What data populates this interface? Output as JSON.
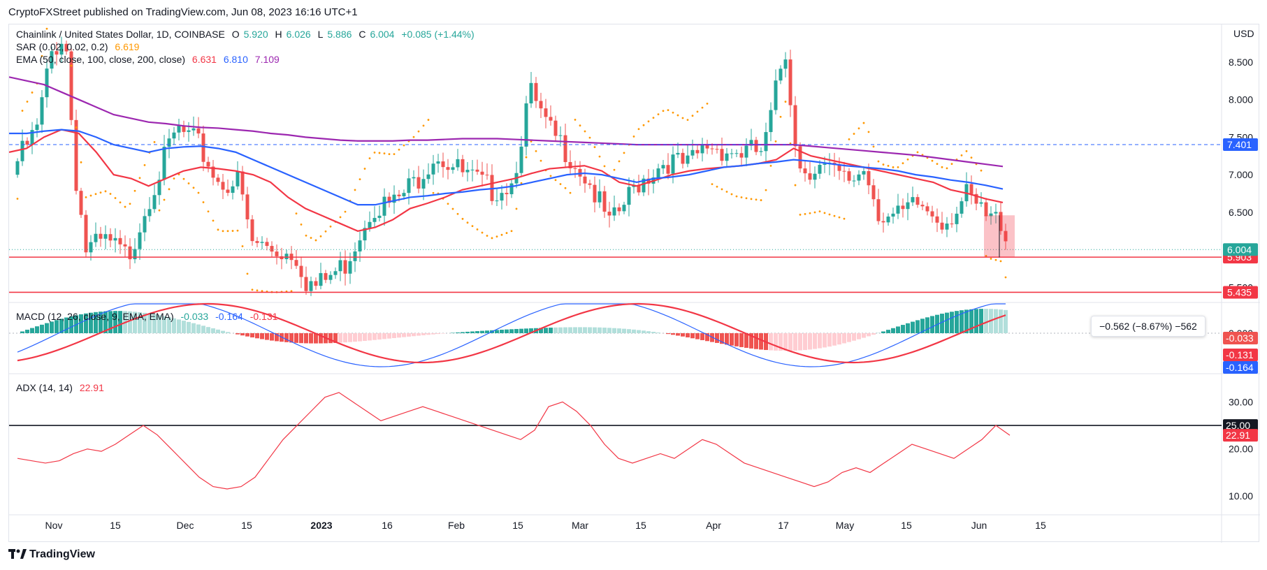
{
  "header": {
    "published": "CryptoFXStreet published on TradingView.com, Jun 08, 2023 16:16 UTC+1",
    "brand": "TradingView"
  },
  "legend": {
    "symbol": "Chainlink / United States Dollar, 1D, COINBASE",
    "ohlc": {
      "o_label": "O",
      "o": "5.920",
      "h_label": "H",
      "h": "6.026",
      "l_label": "L",
      "l": "5.886",
      "c_label": "C",
      "c": "6.004",
      "chg": "+0.085 (+1.44%)"
    },
    "sar": {
      "label": "SAR (0.02, 0.02, 0.2)",
      "value": "6.619"
    },
    "ema": {
      "label": "EMA (50, close, 100, close, 200, close)",
      "v50": "6.631",
      "v100": "6.810",
      "v200": "7.109"
    },
    "macd": {
      "label": "MACD (12, 26, close, 9, EMA, EMA)",
      "hist": "-0.033",
      "macd": "-0.164",
      "signal": "-0.131"
    },
    "adx": {
      "label": "ADX (14, 14)",
      "value": "22.91"
    }
  },
  "measure_box": {
    "text": "−0.562 (−8.67%) −562"
  },
  "colors": {
    "up": "#26a69a",
    "down": "#ef5350",
    "ema50": "#f23645",
    "ema100": "#2962ff",
    "ema200": "#9c27b0",
    "sar": "#ff9800",
    "adx": "#f23645",
    "macd_line": "#2962ff",
    "signal_line": "#f23645"
  },
  "chart_data": [
    {
      "type": "candlestick",
      "title": "Chainlink / United States Dollar, 1D, COINBASE",
      "ylabel": "USD",
      "ylim": [
        5.3,
        9.0
      ],
      "yticks": [
        "8.500",
        "8.000",
        "7.500",
        "7.000",
        "6.500",
        "6.000",
        "5.500"
      ],
      "x_tick_labels": [
        "Nov",
        "15",
        "Dec",
        "15",
        "2023",
        "16",
        "Feb",
        "15",
        "Mar",
        "15",
        "Apr",
        "17",
        "May",
        "15",
        "Jun",
        "15"
      ],
      "last_price": "6.004",
      "horizontal_lines": [
        {
          "value": 7.401,
          "label": "7.401",
          "style": "dashed",
          "color": "#2962ff"
        },
        {
          "value": 5.903,
          "label": "5.903",
          "style": "solid",
          "color": "#f23645"
        },
        {
          "value": 5.435,
          "label": "5.435",
          "style": "solid",
          "color": "#f23645"
        }
      ],
      "ema_series": [
        {
          "name": "EMA 50",
          "values": [
            7.3,
            7.35,
            7.5,
            7.6,
            7.55,
            7.3,
            7.0,
            6.95,
            6.85,
            6.95,
            7.05,
            7.1,
            7.08,
            7.05,
            7.0,
            6.9,
            6.7,
            6.55,
            6.45,
            6.35,
            6.25,
            6.3,
            6.4,
            6.55,
            6.62,
            6.7,
            6.8,
            6.85,
            6.9,
            6.95,
            7.02,
            7.08,
            7.1,
            7.12,
            7.05,
            6.9,
            6.85,
            6.92,
            7.0,
            7.05,
            7.08,
            7.1,
            7.12,
            7.15,
            7.2,
            7.35,
            7.25,
            7.2,
            7.15,
            7.1,
            7.05,
            7.0,
            6.95,
            6.9,
            6.8,
            6.75,
            6.68,
            6.63
          ]
        },
        {
          "name": "EMA 100",
          "values": [
            7.55,
            7.55,
            7.58,
            7.6,
            7.58,
            7.5,
            7.4,
            7.35,
            7.3,
            7.35,
            7.37,
            7.38,
            7.35,
            7.3,
            7.2,
            7.1,
            7.0,
            6.9,
            6.8,
            6.7,
            6.6,
            6.6,
            6.65,
            6.7,
            6.72,
            6.75,
            6.77,
            6.8,
            6.82,
            6.85,
            6.9,
            6.95,
            7.0,
            7.02,
            7.0,
            6.95,
            6.9,
            6.95,
            6.97,
            7.0,
            7.05,
            7.1,
            7.12,
            7.15,
            7.17,
            7.2,
            7.18,
            7.15,
            7.12,
            7.1,
            7.08,
            7.05,
            7.0,
            6.97,
            6.93,
            6.9,
            6.86,
            6.81
          ]
        },
        {
          "name": "EMA 200",
          "values": [
            8.3,
            8.25,
            8.2,
            8.1,
            8.0,
            7.9,
            7.8,
            7.75,
            7.7,
            7.68,
            7.65,
            7.63,
            7.62,
            7.6,
            7.58,
            7.55,
            7.53,
            7.5,
            7.48,
            7.46,
            7.45,
            7.45,
            7.45,
            7.46,
            7.46,
            7.47,
            7.48,
            7.48,
            7.48,
            7.47,
            7.46,
            7.45,
            7.44,
            7.43,
            7.42,
            7.41,
            7.4,
            7.4,
            7.4,
            7.4,
            7.4,
            7.4,
            7.4,
            7.4,
            7.4,
            7.4,
            7.38,
            7.36,
            7.34,
            7.32,
            7.3,
            7.28,
            7.26,
            7.23,
            7.2,
            7.17,
            7.14,
            7.11
          ]
        }
      ]
    },
    {
      "type": "bar",
      "title": "MACD (12, 26, close, 9, EMA, EMA)",
      "yticks": [
        "0.000"
      ],
      "last_values": {
        "histogram": "-0.033",
        "signal": "-0.131",
        "macd": "-0.164"
      }
    },
    {
      "type": "line",
      "title": "ADX (14, 14)",
      "yticks": [
        "30.00",
        "20.00",
        "10.00"
      ],
      "horizontal_lines": [
        {
          "value": 25.0,
          "label": "25.00"
        }
      ],
      "last_value": "22.91",
      "values": [
        18,
        17.5,
        17,
        17.5,
        19,
        20,
        19.5,
        21,
        23,
        25,
        23,
        20,
        17,
        14,
        12,
        11.5,
        12,
        14,
        18,
        22,
        25,
        28,
        31,
        32,
        30,
        28,
        26,
        27,
        28,
        29,
        28,
        27,
        26,
        25,
        24,
        23,
        22,
        24,
        29,
        30,
        28,
        25,
        21,
        18,
        17,
        18,
        19,
        18,
        20,
        22,
        21,
        19,
        17,
        16,
        15,
        14,
        13,
        12,
        13,
        15,
        16,
        15,
        17,
        19,
        21,
        20,
        19,
        18,
        20,
        22,
        25,
        22.91
      ]
    }
  ]
}
